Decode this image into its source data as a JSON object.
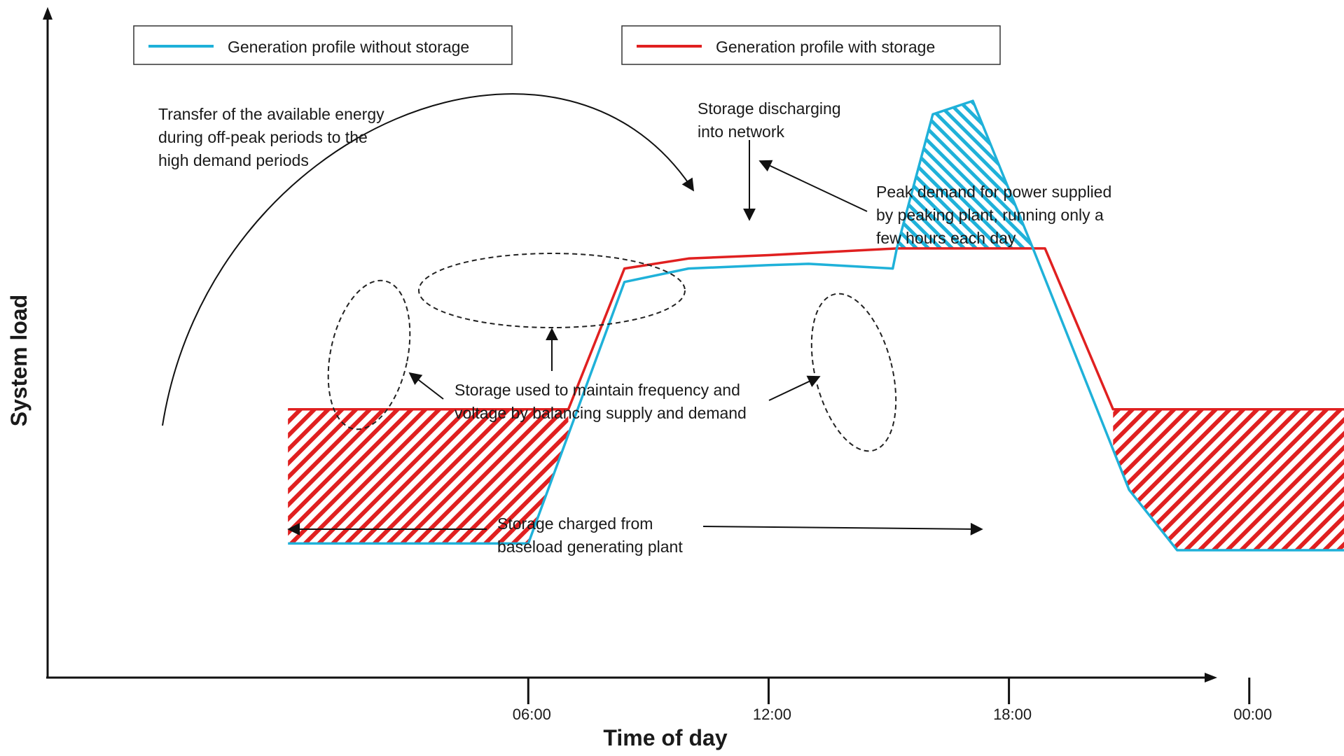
{
  "chart_data": {
    "type": "line",
    "title": "",
    "xlabel": "Time of day",
    "ylabel": "System load",
    "xlim": [
      -6,
      23.2
    ],
    "ylim": [
      0,
      10
    ],
    "x_ticks": [
      {
        "value": 6,
        "label": "06:00"
      },
      {
        "value": 12,
        "label": "12:00"
      },
      {
        "value": 18,
        "label": "18:00"
      },
      {
        "value": 24,
        "label": "00:00"
      }
    ],
    "y_ticks": [],
    "grid": false,
    "legend_position": "top",
    "series": [
      {
        "name": "Generation profile without storage",
        "color": "#1fb1d9",
        "points": [
          [
            0,
            2.0
          ],
          [
            6,
            2.0
          ],
          [
            8.4,
            5.9
          ],
          [
            10,
            6.1
          ],
          [
            12,
            6.15
          ],
          [
            13,
            6.17
          ],
          [
            15.1,
            6.1
          ],
          [
            15.2,
            6.4
          ],
          [
            16.1,
            8.4
          ],
          [
            17.1,
            8.6
          ],
          [
            18.6,
            6.4
          ],
          [
            21,
            2.8
          ],
          [
            22.2,
            1.9
          ],
          [
            26.8,
            1.9
          ]
        ]
      },
      {
        "name": "Generation profile with storage",
        "color": "#e02020",
        "points": [
          [
            0,
            4.0
          ],
          [
            7,
            4.0
          ],
          [
            8.4,
            6.1
          ],
          [
            10,
            6.25
          ],
          [
            12,
            6.3
          ],
          [
            15.2,
            6.4
          ],
          [
            18.9,
            6.4
          ],
          [
            20.6,
            4.0
          ],
          [
            26.8,
            4.0
          ]
        ]
      }
    ],
    "shaded_regions": [
      {
        "kind": "storage charging",
        "color": "#e02020",
        "x_range": [
          0,
          7
        ]
      },
      {
        "kind": "storage charging",
        "color": "#e02020",
        "x_range": [
          20.6,
          26.8
        ]
      },
      {
        "kind": "storage discharging",
        "color": "#1fb1d9",
        "x_range": [
          15.2,
          18.6
        ]
      }
    ],
    "annotations": [
      {
        "id": "transfer",
        "lines": [
          "Transfer of the available energy",
          "during off-peak periods to the",
          "high demand periods"
        ]
      },
      {
        "id": "discharge",
        "lines": [
          "Storage discharging",
          "into network"
        ]
      },
      {
        "id": "peak",
        "lines": [
          "Peak demand for power supplied",
          "by peaking plant, running only a",
          "few hours each day"
        ]
      },
      {
        "id": "balance",
        "lines": [
          "Storage used to maintain frequency and",
          "voltage by balancing supply and demand"
        ]
      },
      {
        "id": "charge",
        "lines": [
          "Storage charged from",
          "baseload generating plant"
        ]
      }
    ]
  }
}
